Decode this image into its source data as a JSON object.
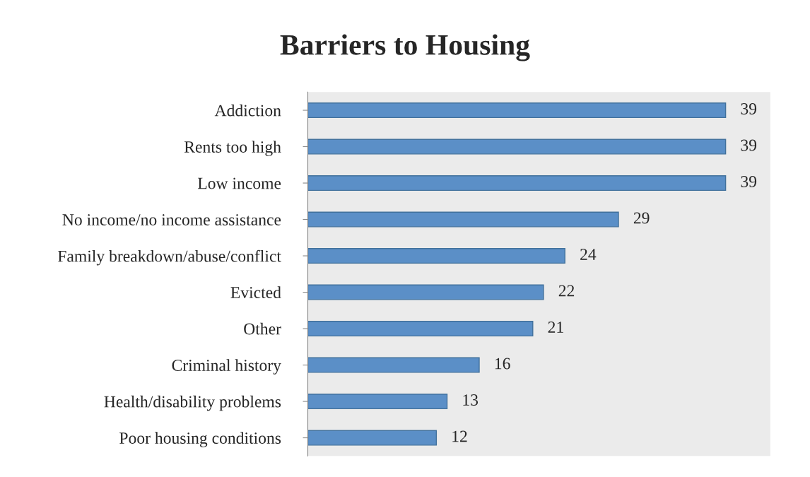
{
  "chart_data": {
    "type": "bar",
    "orientation": "horizontal",
    "title": "Barriers to Housing",
    "categories": [
      "Addiction",
      "Rents too high",
      "Low income",
      "No income/no income assistance",
      "Family breakdown/abuse/conflict",
      "Evicted",
      "Other",
      "Criminal history",
      "Health/disability problems",
      "Poor housing conditions"
    ],
    "values": [
      39,
      39,
      39,
      29,
      24,
      22,
      21,
      16,
      13,
      12
    ],
    "color": "#5b8fc7",
    "data_labels": true,
    "grid": false,
    "legend": false,
    "tick_labels": "y"
  }
}
